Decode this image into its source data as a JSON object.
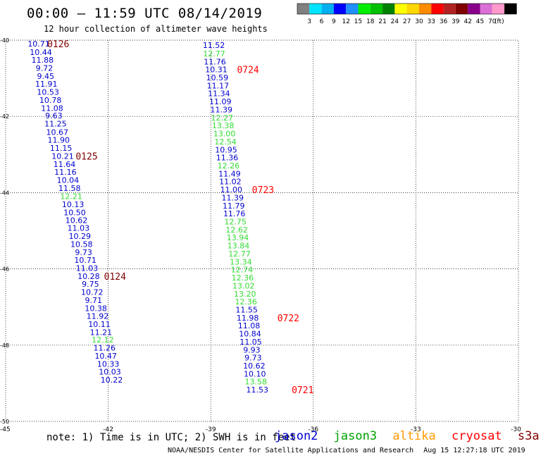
{
  "header": {
    "title": "00:00 – 11:59 UTC 08/14/2019",
    "subtitle": "12 hour collection of altimeter wave heights"
  },
  "colorbar": {
    "colors": [
      "#808080",
      "#00e5ff",
      "#00b0f0",
      "#0000ff",
      "#1e90ff",
      "#00ee00",
      "#00c000",
      "#008000",
      "#ffff00",
      "#ffd700",
      "#ff8c00",
      "#ff0000",
      "#b22222",
      "#800000",
      "#8b008b",
      "#da70d6",
      "#ff99cc",
      "#000000"
    ],
    "labels": [
      "3",
      "6",
      "9",
      "12",
      "15",
      "18",
      "21",
      "24",
      "27",
      "30",
      "33",
      "36",
      "39",
      "42",
      "45",
      "70"
    ],
    "unit": "(ft)"
  },
  "note": "note: 1) Time is in UTC; 2) SWH is in feet",
  "legend": [
    {
      "name": "jason2",
      "color": "#0000d0"
    },
    {
      "name": "jason3",
      "color": "#00a000"
    },
    {
      "name": "altika",
      "color": "#ff9900"
    },
    {
      "name": "cryosat",
      "color": "#ff0000"
    },
    {
      "name": "s3a",
      "color": "#800000"
    }
  ],
  "footer": {
    "credit": "NOAA/NESDIS Center for Satellite Applications and Research",
    "timestamp": "Aug 15 12:27:18 UTC 2019"
  },
  "chart_data": {
    "type": "scatter",
    "xlim": [
      -45,
      -30
    ],
    "ylim": [
      -50,
      -40
    ],
    "x_ticks": [
      "-45",
      "-42",
      "-39",
      "-36",
      "-33",
      "-30"
    ],
    "y_ticks": [
      "-40",
      "-42",
      "-44",
      "-46",
      "-48",
      "-50"
    ],
    "colors": {
      "jason2": "#0000d0",
      "jason3_light": "#33dd33",
      "s3a": "#800000",
      "cryosat": "#ff0000"
    },
    "tracks": [
      {
        "satellite": "jason2",
        "points": [
          {
            "x": -44.03,
            "y": -40.09,
            "v": "10.71"
          },
          {
            "x": -43.97,
            "y": -40.31,
            "v": "10.44"
          },
          {
            "x": -43.92,
            "y": -40.52,
            "v": "11.88"
          },
          {
            "x": -43.87,
            "y": -40.73,
            "v": "9.72"
          },
          {
            "x": -43.83,
            "y": -40.94,
            "v": "9.45"
          },
          {
            "x": -43.81,
            "y": -41.15,
            "v": "11.91"
          },
          {
            "x": -43.76,
            "y": -41.36,
            "v": "10.53"
          },
          {
            "x": -43.69,
            "y": -41.57,
            "v": "10.78"
          },
          {
            "x": -43.64,
            "y": -41.78,
            "v": "11.08"
          },
          {
            "x": -43.59,
            "y": -41.98,
            "v": "9.63"
          },
          {
            "x": -43.54,
            "y": -42.19,
            "v": "11.25"
          },
          {
            "x": -43.49,
            "y": -42.41,
            "v": "10.67"
          },
          {
            "x": -43.45,
            "y": -42.62,
            "v": "11.90"
          },
          {
            "x": -43.38,
            "y": -42.83,
            "v": "11.15"
          },
          {
            "x": -43.33,
            "y": -43.04,
            "v": "10.21"
          },
          {
            "x": -43.28,
            "y": -43.25,
            "v": "11.64"
          },
          {
            "x": -43.25,
            "y": -43.46,
            "v": "11.16"
          },
          {
            "x": -43.18,
            "y": -43.67,
            "v": "10.04"
          },
          {
            "x": -43.13,
            "y": -43.88,
            "v": "11.58"
          },
          {
            "x": -43.08,
            "y": -44.09,
            "v": "12.21",
            "light": true
          },
          {
            "x": -43.03,
            "y": -44.31,
            "v": "10.13"
          },
          {
            "x": -42.98,
            "y": -44.52,
            "v": "10.50"
          },
          {
            "x": -42.93,
            "y": -44.72,
            "v": "10.62"
          },
          {
            "x": -42.87,
            "y": -44.93,
            "v": "11.03"
          },
          {
            "x": -42.83,
            "y": -45.14,
            "v": "10.29"
          },
          {
            "x": -42.78,
            "y": -45.35,
            "v": "10.58"
          },
          {
            "x": -42.72,
            "y": -45.56,
            "v": "9.73"
          },
          {
            "x": -42.67,
            "y": -45.77,
            "v": "10.71"
          },
          {
            "x": -42.62,
            "y": -45.98,
            "v": "11.03"
          },
          {
            "x": -42.57,
            "y": -46.19,
            "v": "10.28"
          },
          {
            "x": -42.52,
            "y": -46.4,
            "v": "9.75"
          },
          {
            "x": -42.47,
            "y": -46.61,
            "v": "10.72"
          },
          {
            "x": -42.43,
            "y": -46.82,
            "v": "9.71"
          },
          {
            "x": -42.36,
            "y": -47.03,
            "v": "10.38"
          },
          {
            "x": -42.31,
            "y": -47.24,
            "v": "11.92"
          },
          {
            "x": -42.26,
            "y": -47.45,
            "v": "10.11"
          },
          {
            "x": -42.21,
            "y": -47.66,
            "v": "11.21"
          },
          {
            "x": -42.16,
            "y": -47.86,
            "v": "12.12",
            "light": true
          },
          {
            "x": -42.11,
            "y": -48.07,
            "v": "11.26"
          },
          {
            "x": -42.07,
            "y": -48.28,
            "v": "10.47"
          },
          {
            "x": -42.0,
            "y": -48.49,
            "v": "10.33"
          },
          {
            "x": -41.95,
            "y": -48.7,
            "v": "10.03"
          },
          {
            "x": -41.9,
            "y": -48.91,
            "v": "10.22"
          }
        ]
      },
      {
        "satellite": "jason2",
        "points": [
          {
            "x": -38.91,
            "y": -40.13,
            "v": "11.52"
          },
          {
            "x": -38.9,
            "y": -40.35,
            "v": "12.77",
            "light": true
          },
          {
            "x": -38.88,
            "y": -40.56,
            "v": "11.76"
          },
          {
            "x": -38.84,
            "y": -40.77,
            "v": "10.31"
          },
          {
            "x": -38.81,
            "y": -40.98,
            "v": "10.59"
          },
          {
            "x": -38.79,
            "y": -41.19,
            "v": "11.17"
          },
          {
            "x": -38.76,
            "y": -41.4,
            "v": "11.34"
          },
          {
            "x": -38.72,
            "y": -41.61,
            "v": "11.09"
          },
          {
            "x": -38.69,
            "y": -41.82,
            "v": "11.39"
          },
          {
            "x": -38.67,
            "y": -42.03,
            "v": "12.27",
            "light": true
          },
          {
            "x": -38.64,
            "y": -42.24,
            "v": "13.38",
            "light": true
          },
          {
            "x": -38.6,
            "y": -42.45,
            "v": "13.00",
            "light": true
          },
          {
            "x": -38.57,
            "y": -42.66,
            "v": "12.54",
            "light": true
          },
          {
            "x": -38.55,
            "y": -42.87,
            "v": "10.95"
          },
          {
            "x": -38.52,
            "y": -43.08,
            "v": "11.36"
          },
          {
            "x": -38.48,
            "y": -43.29,
            "v": "12.26",
            "light": true
          },
          {
            "x": -38.45,
            "y": -43.5,
            "v": "11.49"
          },
          {
            "x": -38.43,
            "y": -43.71,
            "v": "11.02"
          },
          {
            "x": -38.4,
            "y": -43.92,
            "v": "11.00"
          },
          {
            "x": -38.36,
            "y": -44.13,
            "v": "11.39"
          },
          {
            "x": -38.33,
            "y": -44.34,
            "v": "11.79"
          },
          {
            "x": -38.31,
            "y": -44.55,
            "v": "11.76"
          },
          {
            "x": -38.28,
            "y": -44.76,
            "v": "12.75",
            "light": true
          },
          {
            "x": -38.24,
            "y": -44.97,
            "v": "12.62",
            "light": true
          },
          {
            "x": -38.21,
            "y": -45.18,
            "v": "13.94",
            "light": true
          },
          {
            "x": -38.19,
            "y": -45.39,
            "v": "13.84",
            "light": true
          },
          {
            "x": -38.16,
            "y": -45.6,
            "v": "12.77",
            "light": true
          },
          {
            "x": -38.12,
            "y": -45.81,
            "v": "13.34",
            "light": true
          },
          {
            "x": -38.09,
            "y": -46.02,
            "v": "12.74",
            "light": true
          },
          {
            "x": -38.07,
            "y": -46.23,
            "v": "12.36",
            "light": true
          },
          {
            "x": -38.04,
            "y": -46.44,
            "v": "13.02",
            "light": true
          },
          {
            "x": -38.0,
            "y": -46.65,
            "v": "13.20",
            "light": true
          },
          {
            "x": -37.97,
            "y": -46.86,
            "v": "12.36",
            "light": true
          },
          {
            "x": -37.95,
            "y": -47.07,
            "v": "11.55"
          },
          {
            "x": -37.92,
            "y": -47.28,
            "v": "11.98"
          },
          {
            "x": -37.88,
            "y": -47.49,
            "v": "11.08"
          },
          {
            "x": -37.85,
            "y": -47.7,
            "v": "10.84"
          },
          {
            "x": -37.83,
            "y": -47.91,
            "v": "11.05"
          },
          {
            "x": -37.8,
            "y": -48.12,
            "v": "9.93"
          },
          {
            "x": -37.76,
            "y": -48.33,
            "v": "9.73"
          },
          {
            "x": -37.73,
            "y": -48.54,
            "v": "10.62"
          },
          {
            "x": -37.71,
            "y": -48.75,
            "v": "10.10"
          },
          {
            "x": -37.68,
            "y": -48.96,
            "v": "13.58",
            "light": true
          },
          {
            "x": -37.64,
            "y": -49.17,
            "v": "11.53"
          }
        ]
      }
    ],
    "time_labels": [
      {
        "text": "0126",
        "x": -43.46,
        "y": -40.09,
        "color": "s3a"
      },
      {
        "text": "0125",
        "x": -42.63,
        "y": -43.04,
        "color": "s3a"
      },
      {
        "text": "0124",
        "x": -41.8,
        "y": -46.19,
        "color": "s3a"
      },
      {
        "text": "0724",
        "x": -37.91,
        "y": -40.77,
        "color": "cryosat"
      },
      {
        "text": "0723",
        "x": -37.47,
        "y": -43.92,
        "color": "cryosat"
      },
      {
        "text": "0722",
        "x": -36.73,
        "y": -47.28,
        "color": "cryosat"
      },
      {
        "text": "0721",
        "x": -36.31,
        "y": -49.17,
        "color": "cryosat"
      }
    ]
  }
}
